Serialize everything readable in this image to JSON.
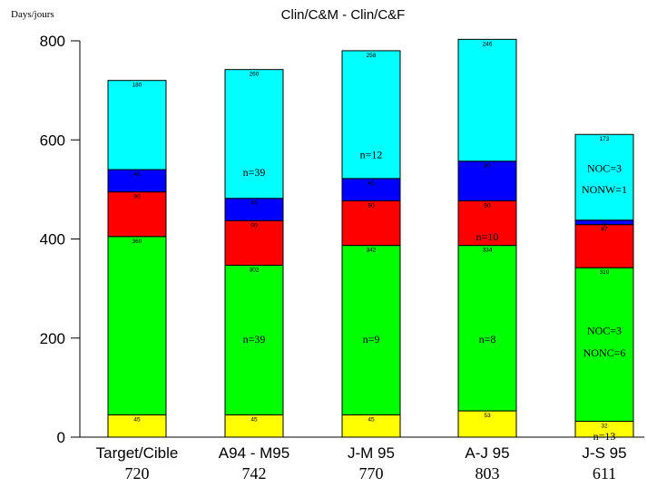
{
  "chart_data": {
    "type": "bar",
    "stacked": true,
    "title": "Clin/C&M - Clin/C&F",
    "ylabel": "Days/jours",
    "xlabel": "",
    "ylim": [
      0,
      800
    ],
    "yticks": [
      0,
      200,
      400,
      600,
      800
    ],
    "grid": false,
    "legend": "none",
    "categories": [
      "Target/Cible",
      "A94 - M95",
      "J-M 95",
      "A-J 95",
      "J-S 95"
    ],
    "totals": [
      "720",
      "742",
      "770",
      "803",
      "611"
    ],
    "series": [
      {
        "color": "#ffff00",
        "values": [
          45,
          45,
          45,
          53,
          32
        ],
        "labels": [
          "45",
          "45",
          "45",
          "53",
          "32"
        ]
      },
      {
        "color": "#00ff00",
        "values": [
          360,
          302,
          342,
          334,
          310
        ],
        "labels": [
          "360",
          "302",
          "342",
          "334",
          "310"
        ]
      },
      {
        "color": "#ff0000",
        "values": [
          90,
          90,
          90,
          90,
          87
        ],
        "labels": [
          "90",
          "90",
          "90",
          "90",
          "87"
        ]
      },
      {
        "color": "#0000ff",
        "values": [
          45,
          45,
          45,
          80,
          9
        ],
        "labels": [
          "45",
          "45",
          "45",
          "80",
          "9"
        ]
      },
      {
        "color": "#00ffff",
        "values": [
          180,
          260,
          258,
          246,
          173
        ],
        "labels": [
          "180",
          "260",
          "258",
          "246",
          "173"
        ]
      }
    ],
    "annotations": [
      {
        "category": 1,
        "y": 535,
        "text": "n=39"
      },
      {
        "category": 1,
        "y": 198,
        "text": "n=39"
      },
      {
        "category": 2,
        "y": 570,
        "text": "n=12"
      },
      {
        "category": 2,
        "y": 198,
        "text": "n=9"
      },
      {
        "category": 3,
        "y": 405,
        "text": "n=10"
      },
      {
        "category": 3,
        "y": 198,
        "text": "n=8"
      },
      {
        "category": 4,
        "y": 543,
        "text": "NOC=3"
      },
      {
        "category": 4,
        "y": 500,
        "text": "NONW=1"
      },
      {
        "category": 4,
        "y": 215,
        "text": "NOC=3"
      },
      {
        "category": 4,
        "y": 170,
        "text": "NONC=6"
      },
      {
        "category": 4,
        "y": 2,
        "text": "n=13"
      }
    ]
  }
}
